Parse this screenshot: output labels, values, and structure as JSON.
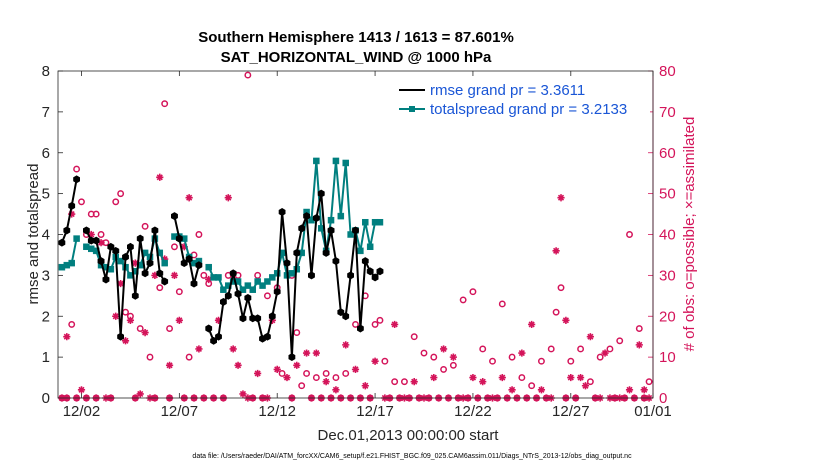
{
  "chart_data": {
    "type": "line",
    "title": "Southern Hemisphere 1413 / 1613 = 87.601%",
    "subtitle": "SAT_HORIZONTAL_WIND @ 1000 hPa",
    "xlabel": "Dec.01,2013 00:00:00 start",
    "ylabel": "rmse and totalspread",
    "y2label": "# of obs: o=possible; ×=assimilated",
    "footnote": "data file: /Users/raeder/DAI/ATM_forcXX/CAM6_setup/f.e21.FHIST_BGC.f09_025.CAM6assim.011/Diags_NTrS_2013-12/obs_diag_output.nc",
    "xlim": [
      0.8,
      31.2
    ],
    "ylim": [
      0,
      8
    ],
    "y2lim": [
      0,
      80
    ],
    "x_ticks": [
      {
        "x": 2,
        "label": "12/02"
      },
      {
        "x": 7,
        "label": "12/07"
      },
      {
        "x": 12,
        "label": "12/12"
      },
      {
        "x": 17,
        "label": "12/17"
      },
      {
        "x": 22,
        "label": "12/22"
      },
      {
        "x": 27,
        "label": "12/27"
      },
      {
        "x": 32,
        "label": "01/01"
      }
    ],
    "y_ticks": [
      "0",
      "1",
      "2",
      "3",
      "4",
      "5",
      "6",
      "7",
      "8"
    ],
    "y2_ticks": [
      "0",
      "10",
      "20",
      "30",
      "40",
      "50",
      "60",
      "70",
      "80"
    ],
    "legend_position": "top-right",
    "colors": {
      "rmse": "#000000",
      "spread": "#007f7f",
      "obs": "#d4145a",
      "legend_text": "#1a56d6"
    },
    "series": [
      {
        "name": "rmse grand pr = 3.3611",
        "key": "rmse",
        "x": [
          1,
          1.25,
          1.5,
          1.75,
          null,
          2.25,
          2.5,
          2.75,
          3.0,
          3.25,
          3.5,
          3.75,
          4.0,
          4.25,
          4.5,
          4.75,
          5.0,
          5.25,
          5.5,
          5.75,
          6.0,
          6.25,
          null,
          6.75,
          7.0,
          7.25,
          7.5,
          7.75,
          8.0,
          null,
          8.5,
          8.75,
          9.0,
          9.25,
          9.5,
          9.75,
          10.0,
          10.25,
          10.5,
          10.75,
          11.0,
          11.25,
          11.5,
          11.75,
          12.0,
          12.25,
          12.5,
          12.75,
          13.0,
          13.25,
          13.5,
          13.75,
          14.0,
          14.25,
          14.5,
          14.75,
          15.0,
          15.25,
          15.5,
          15.75,
          16.0,
          16.25,
          16.5,
          16.75,
          17.0,
          17.25
        ],
        "y": [
          3.8,
          4.1,
          4.7,
          5.35,
          null,
          4.1,
          3.85,
          3.85,
          3.35,
          2.9,
          3.7,
          3.6,
          1.5,
          3.45,
          3.7,
          2.5,
          3.9,
          3.05,
          3.3,
          4.1,
          3.05,
          2.85,
          null,
          4.45,
          3.9,
          3.3,
          3.4,
          2.8,
          3.25,
          null,
          1.7,
          1.4,
          1.5,
          2.35,
          2.5,
          3.05,
          2.55,
          1.95,
          2.45,
          1.95,
          1.95,
          1.45,
          1.5,
          2.0,
          2.6,
          4.55,
          3.3,
          1.0,
          3.55,
          4.15,
          4.45,
          3.0,
          4.4,
          5.0,
          3.55,
          4.1,
          3.35,
          2.1,
          2.0,
          3.0,
          4.1,
          1.7,
          3.35,
          3.1,
          2.95,
          3.1
        ]
      },
      {
        "name": "totalspread grand pr = 3.2133",
        "key": "spread",
        "x": [
          1,
          1.25,
          1.5,
          1.75,
          null,
          2.25,
          2.5,
          2.75,
          3.0,
          3.25,
          3.5,
          3.75,
          4.0,
          4.25,
          4.5,
          4.75,
          5.0,
          5.25,
          5.5,
          5.75,
          6.0,
          6.25,
          null,
          6.75,
          7.0,
          7.25,
          7.5,
          7.75,
          8.0,
          null,
          8.5,
          8.75,
          9.0,
          9.25,
          9.5,
          9.75,
          10.0,
          10.25,
          10.5,
          10.75,
          11.0,
          11.25,
          11.5,
          11.75,
          12.0,
          12.25,
          12.5,
          12.75,
          13.0,
          13.25,
          13.5,
          13.75,
          14.0,
          14.25,
          14.5,
          14.75,
          15.0,
          15.25,
          15.5,
          15.75,
          16.0,
          16.25,
          16.5,
          16.75,
          17.0,
          17.25
        ],
        "y": [
          3.2,
          3.25,
          3.3,
          3.9,
          null,
          3.7,
          3.65,
          3.6,
          3.25,
          3.2,
          3.15,
          3.45,
          3.35,
          3.2,
          3.0,
          3.1,
          3.25,
          3.55,
          3.45,
          3.9,
          3.55,
          3.3,
          null,
          3.95,
          3.95,
          3.9,
          3.45,
          3.3,
          3.35,
          null,
          3.2,
          2.95,
          2.95,
          2.65,
          2.75,
          2.85,
          2.85,
          2.65,
          2.75,
          2.65,
          2.85,
          2.75,
          2.85,
          2.95,
          3.05,
          3.55,
          3.0,
          3.05,
          3.15,
          3.55,
          4.55,
          4.35,
          5.8,
          4.15,
          3.6,
          4.35,
          5.8,
          4.45,
          5.75,
          4.0,
          4.1,
          3.6,
          4.3,
          3.7,
          4.3,
          4.3
        ]
      }
    ],
    "obs_possible": [
      [
        1.5,
        18
      ],
      [
        1.75,
        56
      ],
      [
        2.0,
        48
      ],
      [
        2.25,
        40
      ],
      [
        2.5,
        45
      ],
      [
        2.75,
        45
      ],
      [
        3.0,
        40
      ],
      [
        3.25,
        38
      ],
      [
        3.75,
        48
      ],
      [
        4.0,
        50
      ],
      [
        4.25,
        21
      ],
      [
        4.5,
        20
      ],
      [
        5.0,
        17
      ],
      [
        5.25,
        42
      ],
      [
        5.5,
        10
      ],
      [
        6.0,
        27
      ],
      [
        6.25,
        72
      ],
      [
        6.5,
        17
      ],
      [
        6.75,
        37
      ],
      [
        7.0,
        26
      ],
      [
        7.5,
        10
      ],
      [
        7.75,
        35
      ],
      [
        8.0,
        40
      ],
      [
        8.25,
        30
      ],
      [
        8.5,
        28
      ],
      [
        9.5,
        30
      ],
      [
        10.0,
        30
      ],
      [
        10.5,
        79
      ],
      [
        11.0,
        30
      ],
      [
        11.5,
        25
      ],
      [
        12.0,
        27
      ],
      [
        12.25,
        6
      ],
      [
        12.75,
        30
      ],
      [
        13.0,
        16
      ],
      [
        13.25,
        3
      ],
      [
        13.5,
        6
      ],
      [
        14.0,
        5
      ],
      [
        14.5,
        6
      ],
      [
        15.0,
        5
      ],
      [
        15.5,
        6
      ],
      [
        16.0,
        18
      ],
      [
        16.5,
        25
      ],
      [
        17.0,
        18
      ],
      [
        17.25,
        19
      ],
      [
        17.5,
        9
      ],
      [
        18.0,
        4
      ],
      [
        18.5,
        4
      ],
      [
        19.0,
        15
      ],
      [
        19.5,
        11
      ],
      [
        20.0,
        10
      ],
      [
        20.5,
        7
      ],
      [
        21.0,
        8
      ],
      [
        21.5,
        24
      ],
      [
        22.0,
        26
      ],
      [
        22.5,
        12
      ],
      [
        23.0,
        9
      ],
      [
        23.5,
        23
      ],
      [
        24.0,
        10
      ],
      [
        24.5,
        5
      ],
      [
        25.0,
        3
      ],
      [
        25.5,
        9
      ],
      [
        26.0,
        12
      ],
      [
        26.25,
        21
      ],
      [
        26.5,
        27
      ],
      [
        27.0,
        9
      ],
      [
        27.5,
        12
      ],
      [
        28.0,
        4
      ],
      [
        28.5,
        10
      ],
      [
        29.0,
        12
      ],
      [
        29.5,
        14
      ],
      [
        30.0,
        40
      ],
      [
        30.5,
        17
      ],
      [
        31.0,
        4
      ]
    ],
    "obs_assimilated": [
      [
        1.25,
        15
      ],
      [
        1.5,
        45
      ],
      [
        2.0,
        2
      ],
      [
        2.5,
        40
      ],
      [
        3.0,
        38
      ],
      [
        3.25,
        0
      ],
      [
        3.75,
        20
      ],
      [
        4.0,
        28
      ],
      [
        4.25,
        14
      ],
      [
        4.5,
        19
      ],
      [
        4.75,
        33
      ],
      [
        5.0,
        1
      ],
      [
        5.25,
        16
      ],
      [
        5.5,
        0
      ],
      [
        5.75,
        30
      ],
      [
        6.0,
        54
      ],
      [
        6.25,
        34
      ],
      [
        6.5,
        8
      ],
      [
        6.75,
        30
      ],
      [
        7.0,
        19
      ],
      [
        7.25,
        37
      ],
      [
        7.5,
        49
      ],
      [
        8.0,
        12
      ],
      [
        8.5,
        29
      ],
      [
        9.0,
        19
      ],
      [
        9.5,
        49
      ],
      [
        9.75,
        12
      ],
      [
        10.0,
        8
      ],
      [
        10.25,
        1
      ],
      [
        10.5,
        0
      ],
      [
        11.0,
        6
      ],
      [
        11.5,
        0
      ],
      [
        11.75,
        19
      ],
      [
        12.0,
        7
      ],
      [
        12.5,
        5
      ],
      [
        13.0,
        8
      ],
      [
        13.5,
        11
      ],
      [
        14.0,
        11
      ],
      [
        14.5,
        4
      ],
      [
        15.0,
        2
      ],
      [
        15.5,
        13
      ],
      [
        16.0,
        7
      ],
      [
        16.5,
        3
      ],
      [
        17.0,
        9
      ],
      [
        17.5,
        0
      ],
      [
        18.0,
        18
      ],
      [
        18.5,
        0
      ],
      [
        19.0,
        4
      ],
      [
        19.5,
        0
      ],
      [
        20.0,
        5
      ],
      [
        20.5,
        12
      ],
      [
        21.0,
        10
      ],
      [
        21.5,
        0
      ],
      [
        22.0,
        5
      ],
      [
        22.5,
        4
      ],
      [
        23.0,
        0
      ],
      [
        23.5,
        5
      ],
      [
        24.0,
        2
      ],
      [
        24.5,
        11
      ],
      [
        25.0,
        18
      ],
      [
        25.5,
        2
      ],
      [
        26.0,
        0
      ],
      [
        26.25,
        36
      ],
      [
        26.5,
        49
      ],
      [
        26.75,
        19
      ],
      [
        27.0,
        5
      ],
      [
        27.5,
        5
      ],
      [
        27.75,
        3
      ],
      [
        28.0,
        15
      ],
      [
        28.5,
        0
      ],
      [
        28.75,
        11
      ],
      [
        29.0,
        0
      ],
      [
        29.5,
        0
      ],
      [
        30.0,
        2
      ],
      [
        30.5,
        13
      ],
      [
        30.75,
        2
      ],
      [
        31.0,
        0
      ]
    ],
    "obs_zero_x": [
      1.0,
      1.25,
      1.75,
      2.25,
      2.75,
      3.5,
      4.75,
      5.75,
      6.5,
      7.25,
      7.75,
      8.25,
      8.75,
      9.25,
      10.75,
      11.25,
      12.75,
      13.75,
      14.25,
      14.75,
      15.25,
      15.75,
      16.25,
      16.75,
      17.75,
      18.25,
      18.75,
      19.25,
      19.75,
      20.25,
      20.75,
      21.25,
      21.75,
      22.25,
      22.75,
      23.25,
      23.75,
      24.25,
      24.75,
      25.25,
      25.75,
      26.75,
      27.25,
      28.25,
      29.25,
      29.75,
      30.25,
      30.75
    ]
  }
}
